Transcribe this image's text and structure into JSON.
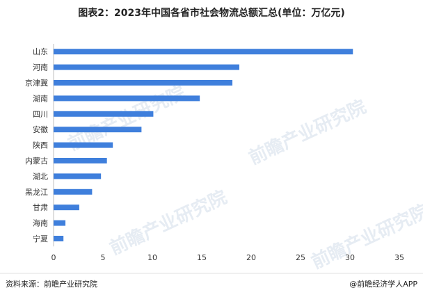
{
  "chart_data": {
    "type": "bar",
    "orientation": "horizontal",
    "title": "图表2：2023年中国各省市社会物流总额汇总(单位：万亿元)",
    "categories": [
      "山东",
      "河南",
      "京津冀",
      "湖南",
      "四川",
      "安徽",
      "陕西",
      "内蒙古",
      "湖北",
      "黑龙江",
      "甘肃",
      "海南",
      "宁夏"
    ],
    "values": [
      30.3,
      18.8,
      18.1,
      14.8,
      10.1,
      8.9,
      6.0,
      5.4,
      4.8,
      3.9,
      2.6,
      1.2,
      1.0
    ],
    "xlim": [
      0,
      35
    ],
    "xticks": [
      0,
      5,
      10,
      15,
      20,
      25,
      30,
      35
    ],
    "grid": false,
    "bar_color": "#3f7fdc"
  },
  "footer": {
    "source": "资料来源：前瞻产业研究院",
    "brand": "@前瞻经济学人APP"
  },
  "watermark": "前瞻产业研究院"
}
